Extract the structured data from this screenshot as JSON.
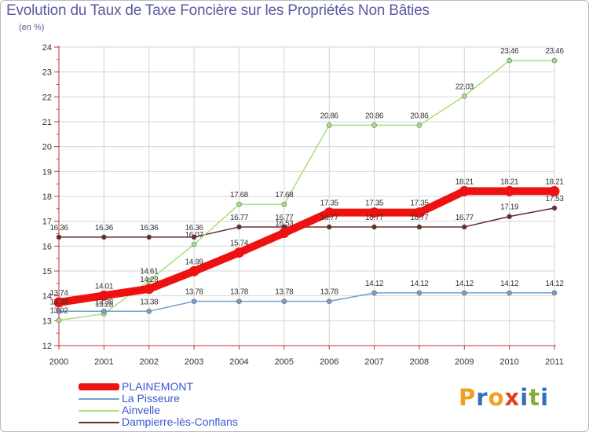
{
  "header": {
    "title": "Evolution du Taux de Taxe Foncière sur les Propriétés Non Bâties",
    "unit": "(en %)"
  },
  "brand": {
    "letters": [
      "P",
      "r",
      "o",
      "x",
      "i",
      "t",
      "i"
    ],
    "colors": [
      "#f0a020",
      "#3070c0",
      "#f0a020",
      "#e04020",
      "#3070c0",
      "#80b030",
      "#3070c0"
    ]
  },
  "chart_data": {
    "type": "line",
    "title": "Evolution du Taux de Taxe Foncière sur les Propriétés Non Bâties",
    "ylabel": "(en %)",
    "xlabel": "",
    "x": [
      "2000",
      "2001",
      "2002",
      "2003",
      "2004",
      "2005",
      "2006",
      "2007",
      "2008",
      "2009",
      "2010",
      "2011"
    ],
    "ylim": [
      12,
      24
    ],
    "yticks": [
      "12",
      "13",
      "14",
      "15",
      "16",
      "17",
      "18",
      "19",
      "20",
      "21",
      "22",
      "23",
      "24"
    ],
    "grid": true,
    "legend_position": "bottom-left",
    "series": [
      {
        "name": "Dampierre-lès-Conflans",
        "color": "#6b2a2a",
        "thick": false,
        "values": [
          16.36,
          16.36,
          16.36,
          16.36,
          16.77,
          16.77,
          16.77,
          16.77,
          16.77,
          16.77,
          17.19,
          17.53
        ],
        "labels": [
          "16.36",
          "16.36",
          "16.36",
          "16.36",
          "16.77",
          "16.77",
          "16.77",
          "16.77",
          "16.77",
          "16.77",
          "17.19",
          "17.53"
        ]
      },
      {
        "name": "Ainvelle",
        "color": "#a6e07c",
        "thick": false,
        "values": [
          13.02,
          13.28,
          14.61,
          16.07,
          17.68,
          17.68,
          20.86,
          20.86,
          20.86,
          22.03,
          23.46,
          23.46
        ],
        "labels": [
          "13.02",
          "13.28",
          "14.61",
          "16.07",
          "17.68",
          "17.68",
          "20.86",
          "20.86",
          "20.86",
          "22.03",
          "23.46",
          "23.46"
        ]
      },
      {
        "name": "La Pisseure",
        "color": "#6fa0cf",
        "thick": false,
        "values": [
          13.38,
          13.38,
          13.38,
          13.78,
          13.78,
          13.78,
          13.78,
          14.12,
          14.12,
          14.12,
          14.12,
          14.12
        ],
        "labels": [
          "13.38",
          "13.38",
          "13.38",
          "13.78",
          "13.78",
          "13.78",
          "13.78",
          "14.12",
          "14.12",
          "14.12",
          "14.12",
          "14.12"
        ]
      },
      {
        "name": "PLAINEMONT",
        "color": "#ee1111",
        "thick": true,
        "values": [
          13.74,
          14.01,
          14.28,
          14.99,
          15.74,
          16.53,
          17.35,
          17.35,
          17.35,
          18.21,
          18.21,
          18.21
        ],
        "labels": [
          "13.74",
          "14.01",
          "14.28",
          "14.99",
          "15.74",
          "16.53",
          "17.35",
          "17.35",
          "17.35",
          "18.21",
          "18.21",
          "18.21"
        ]
      }
    ]
  },
  "legend": {
    "items": [
      {
        "label": "PLAINEMONT",
        "color": "#ee1111",
        "text_color": "#3a58d0",
        "thick": true
      },
      {
        "label": "La Pisseure",
        "color": "#6fa0cf",
        "text_color": "#3a58d0",
        "thick": false
      },
      {
        "label": "Ainvelle",
        "color": "#a6e07c",
        "text_color": "#3a58d0",
        "thick": false
      },
      {
        "label": "Dampierre-lès-Conflans",
        "color": "#6b2a2a",
        "text_color": "#3a58d0",
        "thick": false
      }
    ]
  }
}
